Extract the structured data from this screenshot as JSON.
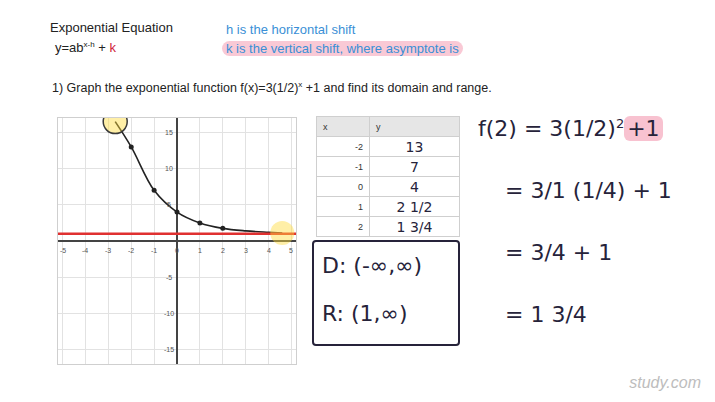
{
  "header": {
    "title": "Exponential Equation",
    "equation": {
      "base": "y=ab",
      "sup": "x-h",
      "tail": " + ",
      "k": "k"
    },
    "notes": [
      "h is the horizontal shift",
      "k is the vertical shift, where asymptote is"
    ]
  },
  "question": {
    "before": "1) Graph the exponential function f(x)=3(1/2)",
    "sup": "x",
    "after": " +1 and find its domain and range."
  },
  "table": {
    "header": [
      "x",
      "y"
    ],
    "rows": [
      [
        "-2",
        "13"
      ],
      [
        "-1",
        "7"
      ],
      [
        "0",
        "4"
      ],
      [
        "1",
        "2 1/2"
      ],
      [
        "2",
        "1 3/4"
      ]
    ]
  },
  "answer": {
    "domain": "D: (-∞,∞)",
    "range": "R: (1,∞)"
  },
  "work": [
    {
      "before": "f(2) = 3(1/2)",
      "sup": "2",
      "highlight": "+1"
    },
    {
      "before": "= 3/1 (1/4) + 1"
    },
    {
      "before": "= 3/4 + 1"
    },
    {
      "before": "= 1 3/4"
    }
  ],
  "watermark": "study.com",
  "chart_data": {
    "type": "line",
    "xlim": [
      -5.2,
      5.2
    ],
    "ylim": [
      -17,
      17
    ],
    "xticks": [
      -5,
      -4,
      -3,
      -2,
      -1,
      0,
      1,
      2,
      3,
      4,
      5
    ],
    "yticks": [
      -15,
      -10,
      -5,
      5,
      10,
      15
    ],
    "grid": true,
    "series": [
      {
        "type": "line",
        "color": "#222222",
        "x": [
          -2.7,
          -2,
          -1,
          0,
          1,
          2,
          3,
          4,
          4.6
        ],
        "values": [
          16.5,
          13,
          7,
          4,
          2.5,
          1.75,
          1.4,
          1.2,
          1.1
        ]
      },
      {
        "type": "scatter",
        "marker": "circle",
        "color": "#222222",
        "x": [
          -2,
          -1,
          0,
          1,
          2
        ],
        "values": [
          13,
          7,
          4,
          2.5,
          1.75
        ]
      },
      {
        "type": "line",
        "color": "#e03030",
        "x": [
          -5.2,
          5.2
        ],
        "values": [
          1,
          1
        ]
      }
    ]
  }
}
